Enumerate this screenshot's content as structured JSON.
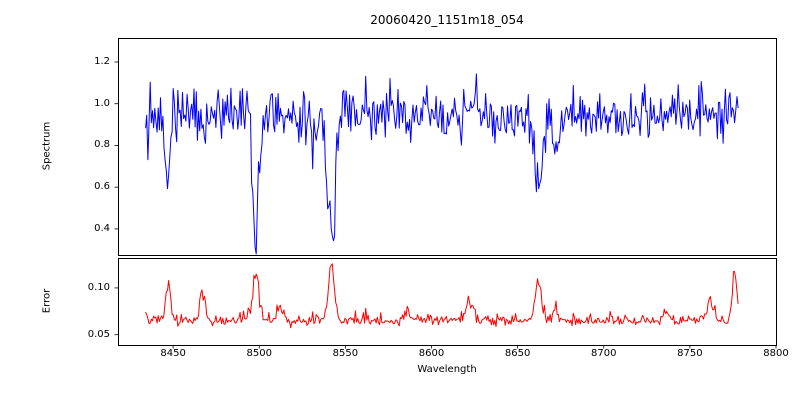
{
  "figure": {
    "title": "20060420_1151m18_054",
    "xlabel": "Wavelength",
    "background": "#ffffff",
    "axis_color": "#000000",
    "xlim": [
      8418,
      8800
    ],
    "xticks": [
      8450,
      8500,
      8550,
      8600,
      8650,
      8700,
      8750,
      8800
    ],
    "xtick_labels": [
      "8450",
      "8500",
      "8550",
      "8600",
      "8650",
      "8700",
      "8750",
      "8800"
    ]
  },
  "chart_data": [
    {
      "id": "spectrum",
      "type": "line",
      "title": "20060420_1151m18_054",
      "ylabel": "Spectrum",
      "legend": "none",
      "grid": false,
      "line_color": "#0000ff",
      "xlim": [
        8418,
        8800
      ],
      "ylim": [
        0.275,
        1.315
      ],
      "yticks": [
        1.2,
        1.0,
        0.8,
        0.6,
        0.4
      ],
      "ytick_labels": [
        "1.2",
        "1.0",
        "0.8",
        "0.6",
        "0.4"
      ],
      "x_start": 8434,
      "x_end": 8778,
      "n_points": 515,
      "seed": 42,
      "baseline": 0.945,
      "noise_sigma": 0.065,
      "noise_abs": false,
      "absorption_lines": [
        {
          "center": 8447,
          "depth": 0.3,
          "width": 1.4
        },
        {
          "center": 8498,
          "depth": 0.55,
          "width": 1.8
        },
        {
          "center": 8531,
          "depth": 0.18,
          "width": 1.3
        },
        {
          "center": 8542,
          "depth": 0.62,
          "width": 2.2
        },
        {
          "center": 8586,
          "depth": 0.15,
          "width": 1.3
        },
        {
          "center": 8662,
          "depth": 0.38,
          "width": 2.0
        },
        {
          "center": 8672,
          "depth": 0.2,
          "width": 1.5
        }
      ]
    },
    {
      "id": "error",
      "type": "line",
      "ylabel": "Error",
      "legend": "none",
      "grid": false,
      "line_color": "#ff0000",
      "xlim": [
        8418,
        8800
      ],
      "ylim": [
        0.039,
        0.132
      ],
      "yticks": [
        0.1,
        0.05
      ],
      "ytick_labels": [
        "0.10",
        "0.05"
      ],
      "x_start": 8434,
      "x_end": 8778,
      "n_points": 515,
      "seed": 7,
      "baseline": 0.062,
      "noise_sigma": 0.0045,
      "noise_abs": true,
      "spikes": [
        {
          "center": 8447,
          "amp": 0.04,
          "width": 1.4
        },
        {
          "center": 8467,
          "amp": 0.03,
          "width": 1.4
        },
        {
          "center": 8498,
          "amp": 0.048,
          "width": 1.8
        },
        {
          "center": 8512,
          "amp": 0.016,
          "width": 1.4
        },
        {
          "center": 8542,
          "amp": 0.052,
          "width": 2.0
        },
        {
          "center": 8586,
          "amp": 0.012,
          "width": 1.4
        },
        {
          "center": 8622,
          "amp": 0.022,
          "width": 2.0
        },
        {
          "center": 8662,
          "amp": 0.04,
          "width": 1.8
        },
        {
          "center": 8672,
          "amp": 0.016,
          "width": 1.4
        },
        {
          "center": 8736,
          "amp": 0.012,
          "width": 1.6
        },
        {
          "center": 8762,
          "amp": 0.02,
          "width": 1.6
        },
        {
          "center": 8776,
          "amp": 0.05,
          "width": 1.4
        }
      ]
    }
  ]
}
